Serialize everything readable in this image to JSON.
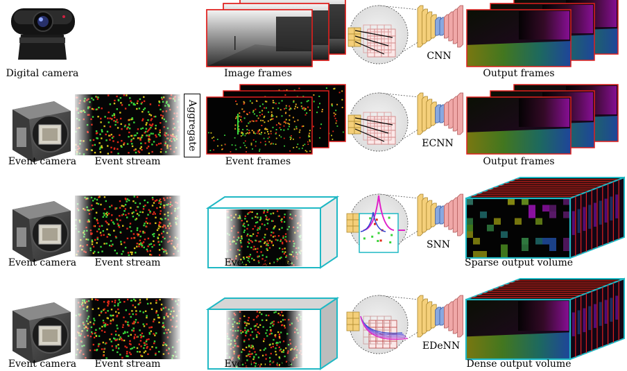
{
  "rows": [
    {
      "source_label": "Digital camera",
      "frames_label": "Image frames",
      "network_label": "CNN",
      "output_label": "Output frames"
    },
    {
      "source_label": "Event camera",
      "stream_label": "Event stream",
      "aggregate_label": "Aggregate",
      "frames_label": "Event frames",
      "network_label": "ECNN",
      "output_label": "Output frames"
    },
    {
      "source_label": "Event camera",
      "stream_label": "Event stream",
      "volume_label": "Event volume",
      "network_label": "SNN",
      "output_label": "Sparse output volume"
    },
    {
      "source_label": "Event camera",
      "stream_label": "Event stream",
      "volume_label": "Event volume",
      "network_label": "EDeNN",
      "output_label": "Dense output volume"
    }
  ],
  "colors": {
    "frame_border": "#e0201e",
    "volume_edge": "#1fb8c4",
    "event_red": "#e02818",
    "event_green": "#39d43a",
    "event_yellow": "#d8c21a",
    "encoder": "#f4cf7a",
    "decoder": "#f0a8a8",
    "bottleneck": "#88a8e0",
    "spike": "#e020c8"
  }
}
